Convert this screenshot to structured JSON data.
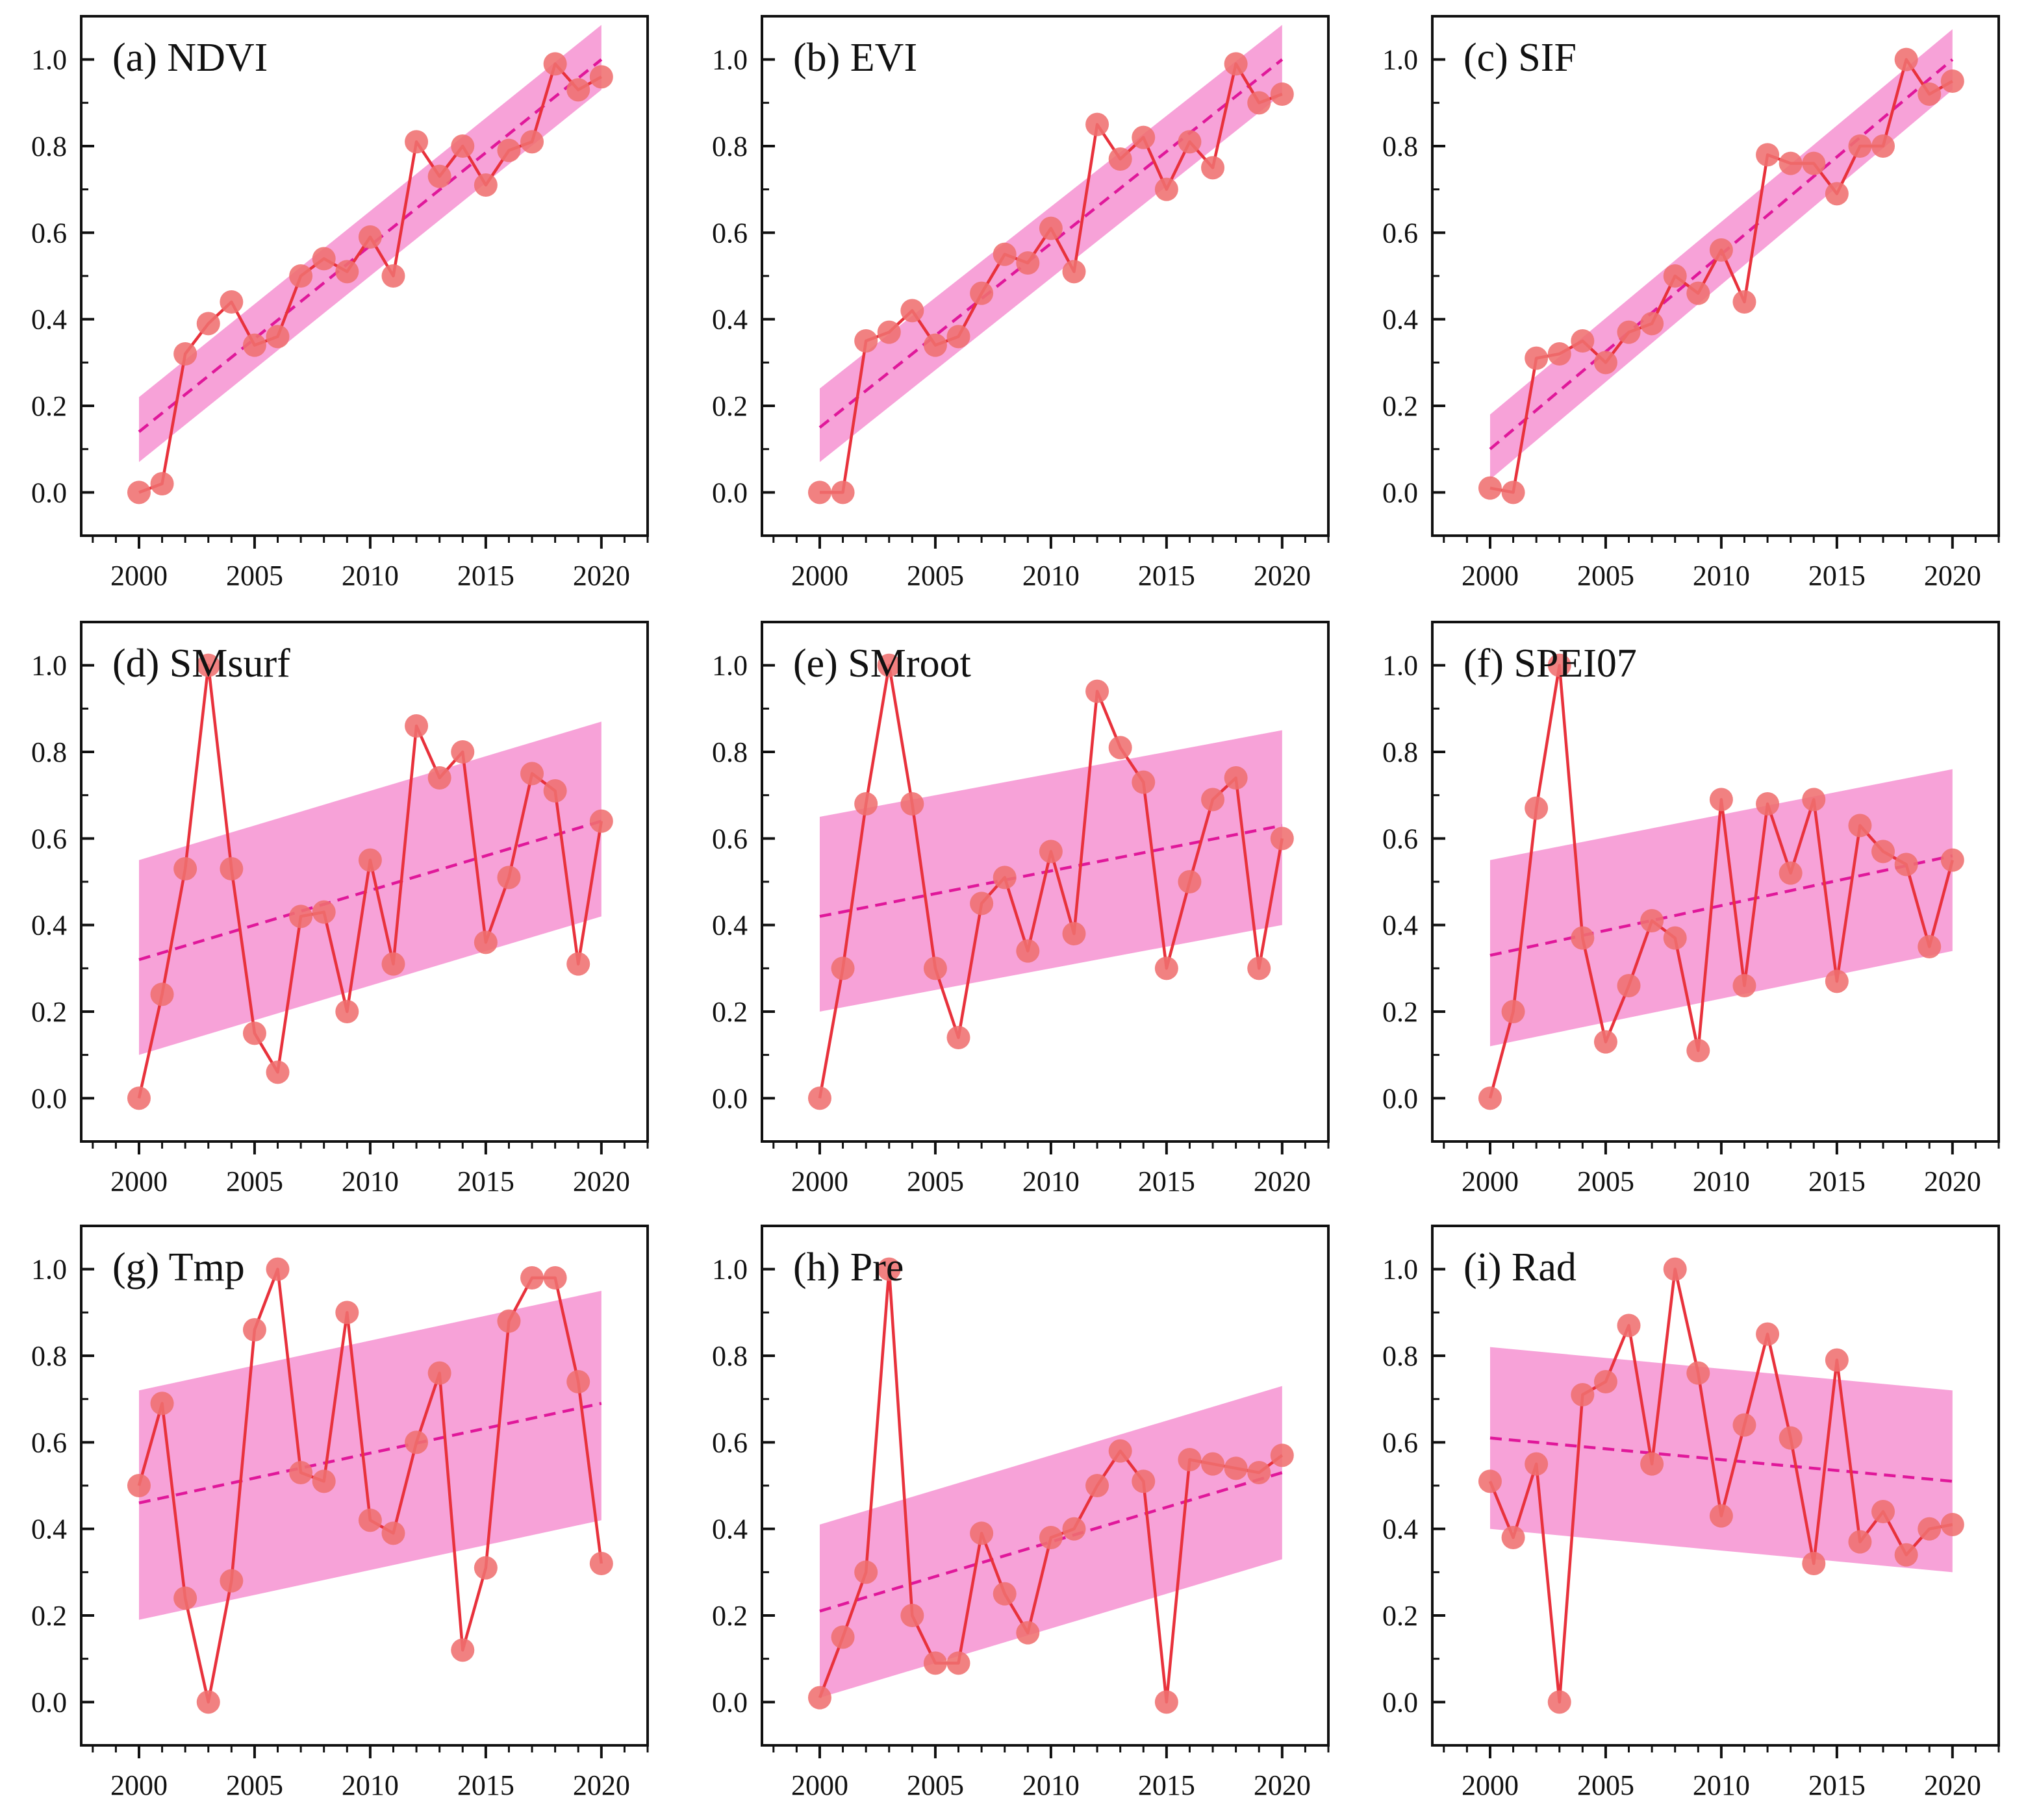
{
  "figure": {
    "x_ticks": [
      "2000",
      "2005",
      "2010",
      "2015",
      "2020"
    ],
    "y_ticks": [
      "0.0",
      "0.2",
      "0.4",
      "0.6",
      "0.8",
      "1.0"
    ],
    "colors": {
      "line": "#e8323c",
      "marker": "#ef6f70",
      "trend": "#e0189a",
      "band": "#f47ec9"
    }
  },
  "chart_data": [
    {
      "type": "line",
      "title": "(a) NDVI",
      "x": [
        2000,
        2001,
        2002,
        2003,
        2004,
        2005,
        2006,
        2007,
        2008,
        2009,
        2010,
        2011,
        2012,
        2013,
        2014,
        2015,
        2016,
        2017,
        2018,
        2019,
        2020
      ],
      "values": [
        0.0,
        0.02,
        0.32,
        0.39,
        0.44,
        0.34,
        0.36,
        0.5,
        0.54,
        0.51,
        0.59,
        0.5,
        0.81,
        0.73,
        0.8,
        0.71,
        0.79,
        0.81,
        0.99,
        0.93,
        0.96
      ],
      "trend": [
        0.14,
        1.0
      ],
      "band_upper": [
        0.22,
        1.08
      ],
      "band_lower": [
        0.07,
        0.93
      ],
      "xlim": [
        1997.5,
        2022
      ],
      "ylim": [
        -0.1,
        1.1
      ],
      "xlabel": "",
      "ylabel": ""
    },
    {
      "type": "line",
      "title": "(b) EVI",
      "x": [
        2000,
        2001,
        2002,
        2003,
        2004,
        2005,
        2006,
        2007,
        2008,
        2009,
        2010,
        2011,
        2012,
        2013,
        2014,
        2015,
        2016,
        2017,
        2018,
        2019,
        2020
      ],
      "values": [
        0.0,
        0.0,
        0.35,
        0.37,
        0.42,
        0.34,
        0.36,
        0.46,
        0.55,
        0.53,
        0.61,
        0.51,
        0.85,
        0.77,
        0.82,
        0.7,
        0.81,
        0.75,
        0.99,
        0.9,
        0.92
      ],
      "trend": [
        0.15,
        1.0
      ],
      "band_upper": [
        0.24,
        1.08
      ],
      "band_lower": [
        0.07,
        0.92
      ],
      "xlim": [
        1997.5,
        2022
      ],
      "ylim": [
        -0.1,
        1.1
      ],
      "xlabel": "",
      "ylabel": ""
    },
    {
      "type": "line",
      "title": "(c) SIF",
      "x": [
        2000,
        2001,
        2002,
        2003,
        2004,
        2005,
        2006,
        2007,
        2008,
        2009,
        2010,
        2011,
        2012,
        2013,
        2014,
        2015,
        2016,
        2017,
        2018,
        2019,
        2020
      ],
      "values": [
        0.01,
        0.0,
        0.31,
        0.32,
        0.35,
        0.3,
        0.37,
        0.39,
        0.5,
        0.46,
        0.56,
        0.44,
        0.78,
        0.76,
        0.76,
        0.69,
        0.8,
        0.8,
        1.0,
        0.92,
        0.95
      ],
      "trend": [
        0.1,
        1.0
      ],
      "band_upper": [
        0.18,
        1.07
      ],
      "band_lower": [
        0.03,
        0.93
      ],
      "xlim": [
        1997.5,
        2022
      ],
      "ylim": [
        -0.1,
        1.1
      ],
      "xlabel": "",
      "ylabel": ""
    },
    {
      "type": "line",
      "title": "(d) SMsurf",
      "x": [
        2000,
        2001,
        2002,
        2003,
        2004,
        2005,
        2006,
        2007,
        2008,
        2009,
        2010,
        2011,
        2012,
        2013,
        2014,
        2015,
        2016,
        2017,
        2018,
        2019,
        2020
      ],
      "values": [
        0.0,
        0.24,
        0.53,
        1.0,
        0.53,
        0.15,
        0.06,
        0.42,
        0.43,
        0.2,
        0.55,
        0.31,
        0.86,
        0.74,
        0.8,
        0.36,
        0.51,
        0.75,
        0.71,
        0.31,
        0.64
      ],
      "trend": [
        0.32,
        0.64
      ],
      "band_upper": [
        0.55,
        0.87
      ],
      "band_lower": [
        0.1,
        0.42
      ],
      "xlim": [
        1997.5,
        2022
      ],
      "ylim": [
        -0.1,
        1.1
      ],
      "xlabel": "",
      "ylabel": ""
    },
    {
      "type": "line",
      "title": "(e) SMroot",
      "x": [
        2000,
        2001,
        2002,
        2003,
        2004,
        2005,
        2006,
        2007,
        2008,
        2009,
        2010,
        2011,
        2012,
        2013,
        2014,
        2015,
        2016,
        2017,
        2018,
        2019,
        2020
      ],
      "values": [
        0.0,
        0.3,
        0.68,
        1.0,
        0.68,
        0.3,
        0.14,
        0.45,
        0.51,
        0.34,
        0.57,
        0.38,
        0.94,
        0.81,
        0.73,
        0.3,
        0.5,
        0.69,
        0.74,
        0.3,
        0.6
      ],
      "trend": [
        0.42,
        0.63
      ],
      "band_upper": [
        0.65,
        0.85
      ],
      "band_lower": [
        0.2,
        0.4
      ],
      "xlim": [
        1997.5,
        2022
      ],
      "ylim": [
        -0.1,
        1.1
      ],
      "xlabel": "",
      "ylabel": ""
    },
    {
      "type": "line",
      "title": "(f) SPEI07",
      "x": [
        2000,
        2001,
        2002,
        2003,
        2004,
        2005,
        2006,
        2007,
        2008,
        2009,
        2010,
        2011,
        2012,
        2013,
        2014,
        2015,
        2016,
        2017,
        2018,
        2019,
        2020
      ],
      "values": [
        0.0,
        0.2,
        0.67,
        1.0,
        0.37,
        0.13,
        0.26,
        0.41,
        0.37,
        0.11,
        0.69,
        0.26,
        0.68,
        0.52,
        0.69,
        0.27,
        0.63,
        0.57,
        0.54,
        0.35,
        0.55
      ],
      "trend": [
        0.33,
        0.56
      ],
      "band_upper": [
        0.55,
        0.76
      ],
      "band_lower": [
        0.12,
        0.34
      ],
      "xlim": [
        1997.5,
        2022
      ],
      "ylim": [
        -0.1,
        1.1
      ],
      "xlabel": "",
      "ylabel": ""
    },
    {
      "type": "line",
      "title": "(g) Tmp",
      "x": [
        2000,
        2001,
        2002,
        2003,
        2004,
        2005,
        2006,
        2007,
        2008,
        2009,
        2010,
        2011,
        2012,
        2013,
        2014,
        2015,
        2016,
        2017,
        2018,
        2019,
        2020
      ],
      "values": [
        0.5,
        0.69,
        0.24,
        0.0,
        0.28,
        0.86,
        1.0,
        0.53,
        0.51,
        0.9,
        0.42,
        0.39,
        0.6,
        0.76,
        0.12,
        0.31,
        0.88,
        0.98,
        0.98,
        0.74,
        0.32
      ],
      "trend": [
        0.46,
        0.69
      ],
      "band_upper": [
        0.72,
        0.95
      ],
      "band_lower": [
        0.19,
        0.42
      ],
      "xlim": [
        1997.5,
        2022
      ],
      "ylim": [
        -0.1,
        1.1
      ],
      "xlabel": "",
      "ylabel": ""
    },
    {
      "type": "line",
      "title": "(h) Pre",
      "x": [
        2000,
        2001,
        2002,
        2003,
        2004,
        2005,
        2006,
        2007,
        2008,
        2009,
        2010,
        2011,
        2012,
        2013,
        2014,
        2015,
        2016,
        2017,
        2018,
        2019,
        2020
      ],
      "values": [
        0.01,
        0.15,
        0.3,
        1.0,
        0.2,
        0.09,
        0.09,
        0.39,
        0.25,
        0.16,
        0.38,
        0.4,
        0.5,
        0.58,
        0.51,
        0.0,
        0.56,
        0.55,
        0.54,
        0.53,
        0.57
      ],
      "trend": [
        0.21,
        0.53
      ],
      "band_upper": [
        0.41,
        0.73
      ],
      "band_lower": [
        0.01,
        0.33
      ],
      "xlim": [
        1997.5,
        2022
      ],
      "ylim": [
        -0.1,
        1.1
      ],
      "xlabel": "",
      "ylabel": ""
    },
    {
      "type": "line",
      "title": "(i) Rad",
      "x": [
        2000,
        2001,
        2002,
        2003,
        2004,
        2005,
        2006,
        2007,
        2008,
        2009,
        2010,
        2011,
        2012,
        2013,
        2014,
        2015,
        2016,
        2017,
        2018,
        2019,
        2020
      ],
      "values": [
        0.51,
        0.38,
        0.55,
        0.0,
        0.71,
        0.74,
        0.87,
        0.55,
        1.0,
        0.76,
        0.43,
        0.64,
        0.85,
        0.61,
        0.32,
        0.79,
        0.37,
        0.44,
        0.34,
        0.4,
        0.41
      ],
      "trend": [
        0.61,
        0.51
      ],
      "band_upper": [
        0.82,
        0.72
      ],
      "band_lower": [
        0.4,
        0.3
      ],
      "xlim": [
        1997.5,
        2022
      ],
      "ylim": [
        -0.1,
        1.1
      ],
      "xlabel": "",
      "ylabel": ""
    }
  ]
}
